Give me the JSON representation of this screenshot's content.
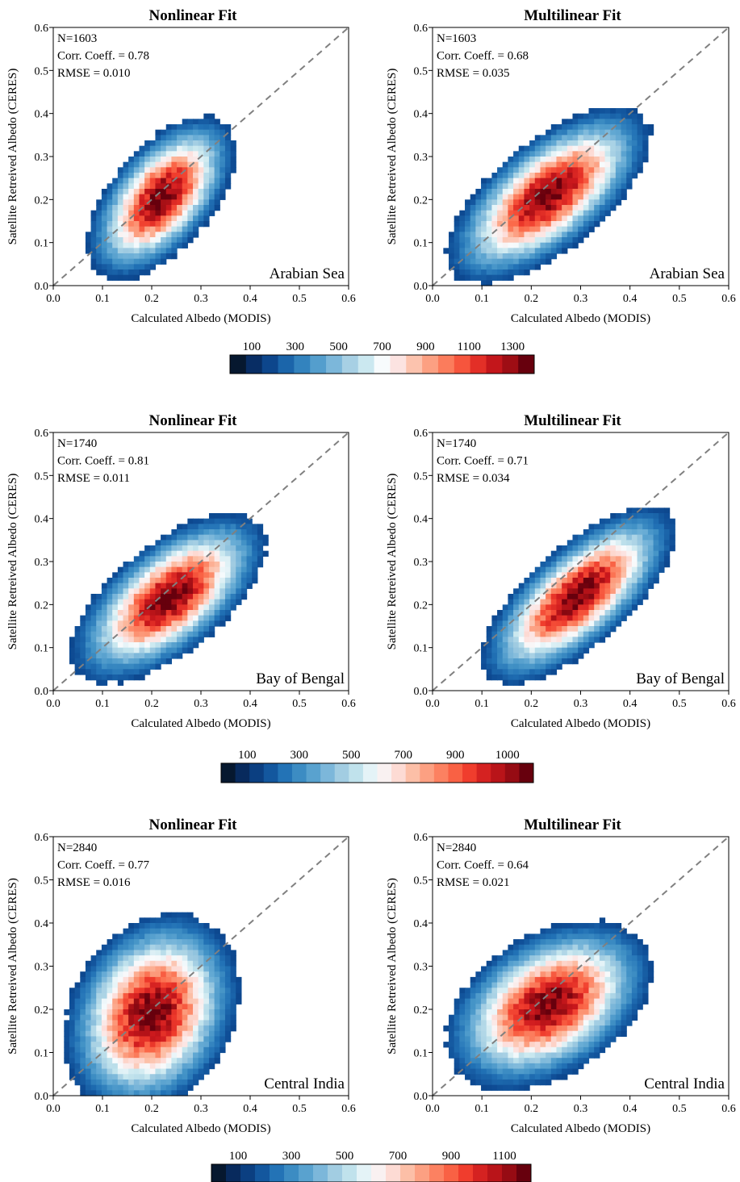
{
  "chart_data": [
    {
      "type": "heatmap",
      "row": 0,
      "col": 0,
      "title": "Nonlinear Fit",
      "xlabel": "Calculated Albedo (MODIS)",
      "ylabel": "Satellite Retreived Albedo (CERES)",
      "xlim": [
        0,
        0.6
      ],
      "ylim": [
        0,
        0.6
      ],
      "x_ticks": [
        "0.0",
        "0.1",
        "0.2",
        "0.3",
        "0.4",
        "0.5",
        "0.6"
      ],
      "y_ticks": [
        "0.0",
        "0.1",
        "0.2",
        "0.3",
        "0.4",
        "0.5",
        "0.6"
      ],
      "stats": [
        "N=1603",
        "Corr. Coeff. = 0.78",
        "RMSE = 0.010"
      ],
      "region": "Arabian Sea",
      "one_to_one_line": true,
      "density": {
        "center": [
          0.22,
          0.205
        ],
        "angle_deg": 56,
        "sigma_major": 0.09,
        "sigma_minor": 0.045,
        "core_peak": 1300,
        "edge_level": 100
      }
    },
    {
      "type": "heatmap",
      "row": 0,
      "col": 1,
      "title": "Multilinear Fit",
      "xlabel": "Calculated Albedo (MODIS)",
      "ylabel": "Satellite Retreived Albedo (CERES)",
      "xlim": [
        0,
        0.6
      ],
      "ylim": [
        0,
        0.6
      ],
      "x_ticks": [
        "0.0",
        "0.1",
        "0.2",
        "0.3",
        "0.4",
        "0.5",
        "0.6"
      ],
      "y_ticks": [
        "0.0",
        "0.1",
        "0.2",
        "0.3",
        "0.4",
        "0.5",
        "0.6"
      ],
      "stats": [
        "N=1603",
        "Corr. Coeff. = 0.68",
        "RMSE = 0.035"
      ],
      "region": "Arabian Sea",
      "one_to_one_line": true,
      "density": {
        "center": [
          0.235,
          0.21
        ],
        "angle_deg": 45,
        "sigma_major": 0.11,
        "sigma_minor": 0.05,
        "core_peak": 1300,
        "edge_level": 100
      }
    },
    {
      "type": "heatmap",
      "row": 1,
      "col": 0,
      "title": "Nonlinear Fit",
      "xlabel": "Calculated Albedo (MODIS)",
      "ylabel": "Satellite Retreived Albedo (CERES)",
      "xlim": [
        0,
        0.6
      ],
      "ylim": [
        0,
        0.6
      ],
      "x_ticks": [
        "0.0",
        "0.1",
        "0.2",
        "0.3",
        "0.4",
        "0.5",
        "0.6"
      ],
      "y_ticks": [
        "0.0",
        "0.1",
        "0.2",
        "0.3",
        "0.4",
        "0.5",
        "0.6"
      ],
      "stats": [
        "N=1740",
        "Corr. Coeff. = 0.81",
        "RMSE = 0.011"
      ],
      "region": "Bay of Bengal",
      "one_to_one_line": true,
      "density": {
        "center": [
          0.235,
          0.215
        ],
        "angle_deg": 45,
        "sigma_major": 0.105,
        "sigma_minor": 0.05,
        "core_peak": 1000,
        "edge_level": 100
      }
    },
    {
      "type": "heatmap",
      "row": 1,
      "col": 1,
      "title": "Multilinear Fit",
      "xlabel": "Calculated Albedo (MODIS)",
      "ylabel": "Satellite Retreived Albedo (CERES)",
      "xlim": [
        0,
        0.6
      ],
      "ylim": [
        0,
        0.6
      ],
      "x_ticks": [
        "0.0",
        "0.1",
        "0.2",
        "0.3",
        "0.4",
        "0.5",
        "0.6"
      ],
      "y_ticks": [
        "0.0",
        "0.1",
        "0.2",
        "0.3",
        "0.4",
        "0.5",
        "0.6"
      ],
      "stats": [
        "N=1740",
        "Corr. Coeff. = 0.71",
        "RMSE = 0.034"
      ],
      "region": "Bay of Bengal",
      "one_to_one_line": true,
      "density": {
        "center": [
          0.295,
          0.22
        ],
        "angle_deg": 47,
        "sigma_major": 0.11,
        "sigma_minor": 0.045,
        "core_peak": 1000,
        "edge_level": 100
      }
    },
    {
      "type": "heatmap",
      "row": 2,
      "col": 0,
      "title": "Nonlinear Fit",
      "xlabel": "Calculated Albedo (MODIS)",
      "ylabel": "Satellite Retreived Albedo (CERES)",
      "xlim": [
        0,
        0.6
      ],
      "ylim": [
        0,
        0.6
      ],
      "x_ticks": [
        "0.0",
        "0.1",
        "0.2",
        "0.3",
        "0.4",
        "0.5",
        "0.6"
      ],
      "y_ticks": [
        "0.0",
        "0.1",
        "0.2",
        "0.3",
        "0.4",
        "0.5",
        "0.6"
      ],
      "stats": [
        "N=2840",
        "Corr. Coeff. = 0.77",
        "RMSE = 0.016"
      ],
      "region": "Central India",
      "one_to_one_line": true,
      "density": {
        "center": [
          0.2,
          0.19
        ],
        "angle_deg": 70,
        "sigma_major": 0.1,
        "sigma_minor": 0.07,
        "core_peak": 1100,
        "edge_level": 100
      }
    },
    {
      "type": "heatmap",
      "row": 2,
      "col": 1,
      "title": "Multilinear Fit",
      "xlabel": "Calculated Albedo (MODIS)",
      "ylabel": "Satellite Retreived Albedo (CERES)",
      "xlim": [
        0,
        0.6
      ],
      "ylim": [
        0,
        0.6
      ],
      "x_ticks": [
        "0.0",
        "0.1",
        "0.2",
        "0.3",
        "0.4",
        "0.5",
        "0.6"
      ],
      "y_ticks": [
        "0.0",
        "0.1",
        "0.2",
        "0.3",
        "0.4",
        "0.5",
        "0.6"
      ],
      "stats": [
        "N=2840",
        "Corr. Coeff. = 0.64",
        "RMSE = 0.021"
      ],
      "region": "Central India",
      "one_to_one_line": true,
      "density": {
        "center": [
          0.235,
          0.21
        ],
        "angle_deg": 40,
        "sigma_major": 0.1,
        "sigma_minor": 0.065,
        "core_peak": 1100,
        "edge_level": 100
      }
    }
  ],
  "colorbars": [
    {
      "row": 0,
      "ticks": [
        "100",
        "300",
        "500",
        "700",
        "900",
        "1100",
        "1300"
      ],
      "n_bins": 19
    },
    {
      "row": 1,
      "ticks": [
        "100",
        "300",
        "500",
        "700",
        "900",
        "1000"
      ],
      "n_bins": 22
    },
    {
      "row": 2,
      "ticks": [
        "100",
        "300",
        "500",
        "700",
        "900",
        "1100"
      ],
      "n_bins": 22
    }
  ],
  "colors": {
    "ramp": [
      "#06182f",
      "#08306b",
      "#0e4c95",
      "#2171b5",
      "#4292c6",
      "#6baed6",
      "#9ecae1",
      "#c6e6ee",
      "#f7fbfd",
      "#fde0dd",
      "#fcbba1",
      "#fc9272",
      "#fb6a4a",
      "#ef3b2c",
      "#cb181d",
      "#a50f15",
      "#67000d"
    ],
    "diagonal": "#808080",
    "axes": "#000000"
  }
}
